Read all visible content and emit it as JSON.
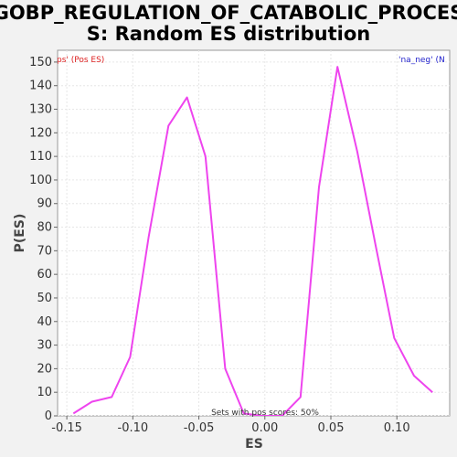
{
  "chart_data": {
    "type": "line",
    "title_lines": [
      "GOBP_REGULATION_OF_CATABOLIC_PROCES",
      "S: Random ES distribution"
    ],
    "xlabel": "ES",
    "ylabel": "P(ES)",
    "xlim": [
      -0.157,
      0.14
    ],
    "ylim": [
      0,
      155
    ],
    "xticks": [
      -0.15,
      -0.1,
      -0.05,
      0.0,
      0.05,
      0.1
    ],
    "xtick_labels": [
      "-0.15",
      "-0.10",
      "-0.05",
      "0.00",
      "0.05",
      "0.10"
    ],
    "yticks": [
      0,
      10,
      20,
      30,
      40,
      50,
      60,
      70,
      80,
      90,
      100,
      110,
      120,
      130,
      140,
      150
    ],
    "ytick_labels": [
      "0",
      "10",
      "20",
      "30",
      "40",
      "50",
      "60",
      "70",
      "80",
      "90",
      "100",
      "110",
      "120",
      "130",
      "140",
      "150"
    ],
    "grid": true,
    "series": [
      {
        "color": "#ee44ee",
        "x": [
          -0.145,
          -0.131,
          -0.116,
          -0.102,
          -0.088,
          -0.073,
          -0.059,
          -0.045,
          -0.03,
          -0.016,
          -0.002,
          0.013,
          0.027,
          0.041,
          0.055,
          0.07,
          0.084,
          0.098,
          0.113,
          0.127
        ],
        "y": [
          1,
          6,
          8,
          25,
          76,
          123,
          135,
          110,
          20,
          1,
          0,
          0,
          8,
          97,
          148,
          112,
          72,
          33,
          17,
          10
        ]
      }
    ],
    "legend": {
      "left_text": "ps' (Pos ES)",
      "left_color": "#dd2222",
      "right_text": "'na_neg' (N",
      "right_color": "#2222cc"
    },
    "annotation": "Sets with pos scores: 50%"
  }
}
